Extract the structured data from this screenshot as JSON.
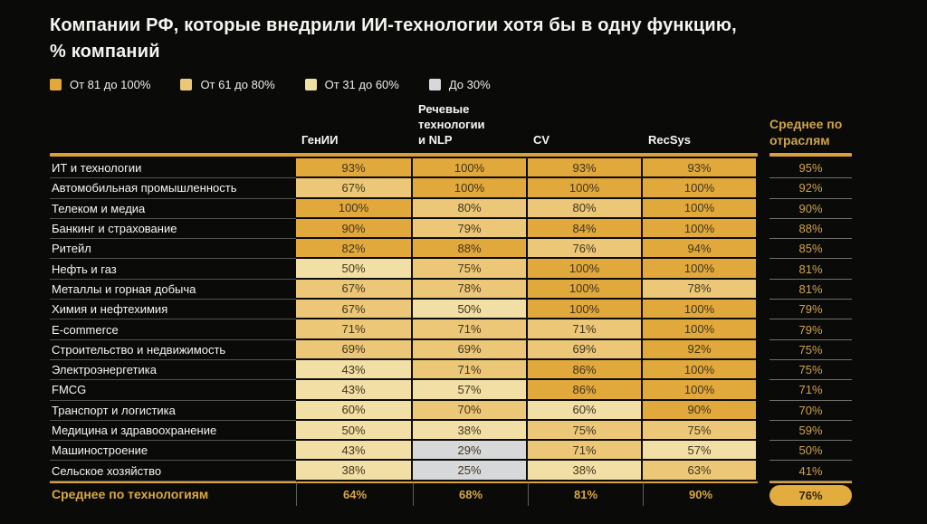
{
  "colors": {
    "background": "#0A0A08",
    "header_rule": "#DCA039",
    "accent_gold_text": "#CFA44D",
    "footer_gold_text": "#D9A843",
    "tier_81_100": "#E1A83C",
    "tier_61_80": "#ECC778",
    "tier_31_60": "#F2DFA6",
    "tier_0_30": "#D7D8DA",
    "cell_text": "#41351A",
    "pill_fill": "#E2AC3F"
  },
  "chart_data": {
    "type": "heatmap",
    "title": "Компании РФ, которые внедрили ИИ-технологии хотя бы в одну функцию,",
    "subtitle": "% компаний",
    "legend": [
      {
        "label": "От 81 до 100%",
        "range": [
          81,
          100
        ]
      },
      {
        "label": "От 61 до 80%",
        "range": [
          61,
          80
        ]
      },
      {
        "label": "От 31 до 60%",
        "range": [
          31,
          60
        ]
      },
      {
        "label": "До 30%",
        "range": [
          0,
          30
        ]
      }
    ],
    "columns": [
      "ГенИИ",
      "Речевые технологии и NLP",
      "CV",
      "RecSys"
    ],
    "avg_column_label": "Среднее по отраслям",
    "rows": [
      {
        "label": "ИТ и технологии",
        "values": [
          93,
          100,
          93,
          93
        ],
        "avg": 95
      },
      {
        "label": "Автомобильная промышленность",
        "values": [
          67,
          100,
          100,
          100
        ],
        "avg": 92
      },
      {
        "label": "Телеком и медиа",
        "values": [
          100,
          80,
          80,
          100
        ],
        "avg": 90
      },
      {
        "label": "Банкинг и страхование",
        "values": [
          90,
          79,
          84,
          100
        ],
        "avg": 88
      },
      {
        "label": "Ритейл",
        "values": [
          82,
          88,
          76,
          94
        ],
        "avg": 85
      },
      {
        "label": "Нефть и газ",
        "values": [
          50,
          75,
          100,
          100
        ],
        "avg": 81
      },
      {
        "label": "Металлы и горная добыча",
        "values": [
          67,
          78,
          100,
          78
        ],
        "avg": 81
      },
      {
        "label": "Химия и нефтехимия",
        "values": [
          67,
          50,
          100,
          100
        ],
        "avg": 79
      },
      {
        "label": "E-commerce",
        "values": [
          71,
          71,
          71,
          100
        ],
        "avg": 79
      },
      {
        "label": "Строительство и недвижимость",
        "values": [
          69,
          69,
          69,
          92
        ],
        "avg": 75
      },
      {
        "label": "Электроэнергетика",
        "values": [
          43,
          71,
          86,
          100
        ],
        "avg": 75
      },
      {
        "label": "FMCG",
        "values": [
          43,
          57,
          86,
          100
        ],
        "avg": 71
      },
      {
        "label": "Транспорт и логистика",
        "values": [
          60,
          70,
          60,
          90
        ],
        "avg": 70
      },
      {
        "label": "Медицина и здравоохранение",
        "values": [
          50,
          38,
          75,
          75
        ],
        "avg": 59
      },
      {
        "label": "Машиностроение",
        "values": [
          43,
          29,
          71,
          57
        ],
        "avg": 50
      },
      {
        "label": "Сельское хозяйство",
        "values": [
          38,
          25,
          38,
          63
        ],
        "avg": 41
      }
    ],
    "footer": {
      "label": "Среднее по технологиям",
      "values": [
        64,
        68,
        81,
        90
      ],
      "avg": 76
    }
  }
}
